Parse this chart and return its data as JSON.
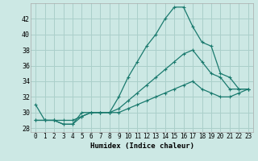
{
  "xlabel": "Humidex (Indice chaleur)",
  "background_color": "#cce8e4",
  "grid_color": "#aacfca",
  "line_color": "#1a7a6e",
  "xlim": [
    -0.5,
    23.5
  ],
  "ylim": [
    27.5,
    44.0
  ],
  "yticks": [
    28,
    30,
    32,
    34,
    36,
    38,
    40,
    42
  ],
  "xticks": [
    0,
    1,
    2,
    3,
    4,
    5,
    6,
    7,
    8,
    9,
    10,
    11,
    12,
    13,
    14,
    15,
    16,
    17,
    18,
    19,
    20,
    21,
    22,
    23
  ],
  "series1_x": [
    0,
    1,
    2,
    3,
    4,
    5,
    6,
    7,
    8,
    9,
    10,
    11,
    12,
    13,
    14,
    15,
    16,
    17,
    18,
    19,
    20,
    21,
    22,
    23
  ],
  "series1_y": [
    31.0,
    29.0,
    29.0,
    28.5,
    28.5,
    30.0,
    30.0,
    30.0,
    30.0,
    32.0,
    34.5,
    36.5,
    38.5,
    40.0,
    42.0,
    43.5,
    43.5,
    41.0,
    39.0,
    38.5,
    35.0,
    34.5,
    33.0,
    33.0
  ],
  "series2_x": [
    0,
    1,
    2,
    3,
    4,
    5,
    6,
    7,
    8,
    9,
    10,
    11,
    12,
    13,
    14,
    15,
    16,
    17,
    18,
    19,
    20,
    21,
    22,
    23
  ],
  "series2_y": [
    29.0,
    29.0,
    29.0,
    28.5,
    28.5,
    29.5,
    30.0,
    30.0,
    30.0,
    30.5,
    31.5,
    32.5,
    33.5,
    34.5,
    35.5,
    36.5,
    37.5,
    38.0,
    36.5,
    35.0,
    34.5,
    33.0,
    33.0,
    33.0
  ],
  "series3_x": [
    0,
    1,
    2,
    3,
    4,
    5,
    6,
    7,
    8,
    9,
    10,
    11,
    12,
    13,
    14,
    15,
    16,
    17,
    18,
    19,
    20,
    21,
    22,
    23
  ],
  "series3_y": [
    29.0,
    29.0,
    29.0,
    29.0,
    29.0,
    29.5,
    30.0,
    30.0,
    30.0,
    30.0,
    30.5,
    31.0,
    31.5,
    32.0,
    32.5,
    33.0,
    33.5,
    34.0,
    33.0,
    32.5,
    32.0,
    32.0,
    32.5,
    33.0
  ],
  "xlabel_fontsize": 6.5,
  "tick_fontsize": 5.5
}
